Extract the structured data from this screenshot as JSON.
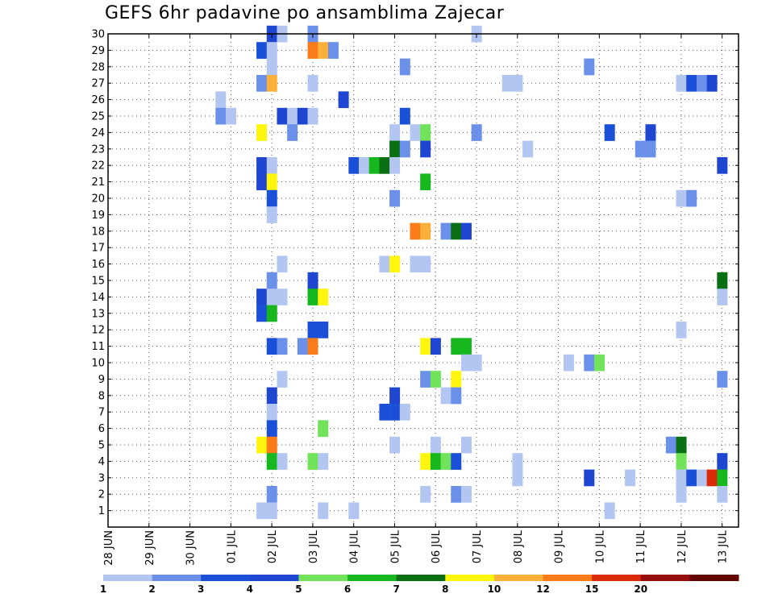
{
  "chart_data": {
    "type": "heatmap",
    "title": "GEFS 6hr padavine po ansamblima Zajecar",
    "x_tick_labels": [
      "28 JUN",
      "29 JUN",
      "30 JUN",
      "01 JUL",
      "02 JUL",
      "03 JUL",
      "04 JUL",
      "05 JUL",
      "06 JUL",
      "07 JUL",
      "08 JUL",
      "09 JUL",
      "10 JUL",
      "11 JUL",
      "12 JUL",
      "13 JUL"
    ],
    "x_range_days": [
      0,
      15.4
    ],
    "y_tick_labels": [
      "1",
      "2",
      "3",
      "4",
      "5",
      "6",
      "7",
      "8",
      "9",
      "10",
      "11",
      "12",
      "13",
      "14",
      "15",
      "16",
      "17",
      "18",
      "19",
      "20",
      "21",
      "22",
      "23",
      "24",
      "25",
      "26",
      "27",
      "28",
      "29",
      "30"
    ],
    "y_range": [
      0,
      30
    ],
    "grid": true,
    "colorbar": {
      "levels": [
        1,
        2,
        3,
        4,
        5,
        6,
        7,
        8,
        10,
        12,
        15,
        20
      ],
      "colors": [
        "#b3c6f2",
        "#6a90ea",
        "#1a50d8",
        "#1e46d0",
        "#70e35a",
        "#16b81e",
        "#0a6e12",
        "#fff50d",
        "#fbb03a",
        "#f97b1a",
        "#db2a08",
        "#970d0d",
        "#640404"
      ]
    },
    "cells": [
      {
        "day": 4.0,
        "member": 30,
        "v": 4
      },
      {
        "day": 4.25,
        "member": 30,
        "v": 1
      },
      {
        "day": 5.0,
        "member": 30,
        "v": 2
      },
      {
        "day": 9.0,
        "member": 30,
        "v": 1
      },
      {
        "day": 3.75,
        "member": 29,
        "v": 3
      },
      {
        "day": 4.0,
        "member": 29,
        "v": 1
      },
      {
        "day": 5.0,
        "member": 29,
        "v": 12
      },
      {
        "day": 5.25,
        "member": 29,
        "v": 10
      },
      {
        "day": 5.5,
        "member": 29,
        "v": 2
      },
      {
        "day": 4.0,
        "member": 28,
        "v": 1
      },
      {
        "day": 7.25,
        "member": 28,
        "v": 2
      },
      {
        "day": 11.75,
        "member": 28,
        "v": 2
      },
      {
        "day": 3.75,
        "member": 27,
        "v": 2
      },
      {
        "day": 4.0,
        "member": 27,
        "v": 10
      },
      {
        "day": 5.0,
        "member": 27,
        "v": 1
      },
      {
        "day": 9.75,
        "member": 27,
        "v": 1
      },
      {
        "day": 10.0,
        "member": 27,
        "v": 1
      },
      {
        "day": 14.0,
        "member": 27,
        "v": 1
      },
      {
        "day": 14.25,
        "member": 27,
        "v": 3
      },
      {
        "day": 14.5,
        "member": 27,
        "v": 2
      },
      {
        "day": 14.75,
        "member": 27,
        "v": 4
      },
      {
        "day": 2.75,
        "member": 26,
        "v": 1
      },
      {
        "day": 5.75,
        "member": 26,
        "v": 4
      },
      {
        "day": 2.75,
        "member": 25,
        "v": 2
      },
      {
        "day": 3.0,
        "member": 25,
        "v": 1
      },
      {
        "day": 4.25,
        "member": 25,
        "v": 4
      },
      {
        "day": 4.5,
        "member": 25,
        "v": 1
      },
      {
        "day": 4.75,
        "member": 25,
        "v": 4
      },
      {
        "day": 5.0,
        "member": 25,
        "v": 1
      },
      {
        "day": 7.25,
        "member": 25,
        "v": 3
      },
      {
        "day": 3.75,
        "member": 24,
        "v": 8
      },
      {
        "day": 4.5,
        "member": 24,
        "v": 2
      },
      {
        "day": 7.0,
        "member": 24,
        "v": 1
      },
      {
        "day": 7.5,
        "member": 24,
        "v": 1
      },
      {
        "day": 7.75,
        "member": 24,
        "v": 5
      },
      {
        "day": 9.0,
        "member": 24,
        "v": 2
      },
      {
        "day": 12.25,
        "member": 24,
        "v": 3
      },
      {
        "day": 13.25,
        "member": 24,
        "v": 4
      },
      {
        "day": 7.0,
        "member": 23,
        "v": 7
      },
      {
        "day": 7.25,
        "member": 23,
        "v": 2
      },
      {
        "day": 7.75,
        "member": 23,
        "v": 4
      },
      {
        "day": 10.25,
        "member": 23,
        "v": 1
      },
      {
        "day": 13.0,
        "member": 23,
        "v": 2
      },
      {
        "day": 13.25,
        "member": 23,
        "v": 2
      },
      {
        "day": 3.75,
        "member": 22,
        "v": 4
      },
      {
        "day": 4.0,
        "member": 22,
        "v": 1
      },
      {
        "day": 6.0,
        "member": 22,
        "v": 3
      },
      {
        "day": 6.25,
        "member": 22,
        "v": 1
      },
      {
        "day": 6.5,
        "member": 22,
        "v": 6
      },
      {
        "day": 6.75,
        "member": 22,
        "v": 7
      },
      {
        "day": 7.0,
        "member": 22,
        "v": 1
      },
      {
        "day": 15.0,
        "member": 22,
        "v": 4
      },
      {
        "day": 3.75,
        "member": 21,
        "v": 4
      },
      {
        "day": 4.0,
        "member": 21,
        "v": 8
      },
      {
        "day": 7.75,
        "member": 21,
        "v": 6
      },
      {
        "day": 4.0,
        "member": 20,
        "v": 3
      },
      {
        "day": 7.0,
        "member": 20,
        "v": 2
      },
      {
        "day": 14.0,
        "member": 20,
        "v": 1
      },
      {
        "day": 14.25,
        "member": 20,
        "v": 2
      },
      {
        "day": 4.0,
        "member": 19,
        "v": 1
      },
      {
        "day": 7.5,
        "member": 18,
        "v": 12
      },
      {
        "day": 7.75,
        "member": 18,
        "v": 10
      },
      {
        "day": 8.25,
        "member": 18,
        "v": 2
      },
      {
        "day": 8.5,
        "member": 18,
        "v": 7
      },
      {
        "day": 8.75,
        "member": 18,
        "v": 4
      },
      {
        "day": 4.25,
        "member": 16,
        "v": 1
      },
      {
        "day": 6.75,
        "member": 16,
        "v": 1
      },
      {
        "day": 7.0,
        "member": 16,
        "v": 8
      },
      {
        "day": 7.5,
        "member": 16,
        "v": 1
      },
      {
        "day": 7.75,
        "member": 16,
        "v": 1
      },
      {
        "day": 4.0,
        "member": 15,
        "v": 2
      },
      {
        "day": 5.0,
        "member": 15,
        "v": 4
      },
      {
        "day": 15.0,
        "member": 15,
        "v": 7
      },
      {
        "day": 3.75,
        "member": 14,
        "v": 4
      },
      {
        "day": 4.0,
        "member": 14,
        "v": 1
      },
      {
        "day": 4.25,
        "member": 14,
        "v": 1
      },
      {
        "day": 5.0,
        "member": 14,
        "v": 6
      },
      {
        "day": 5.25,
        "member": 14,
        "v": 9
      },
      {
        "day": 15.0,
        "member": 14,
        "v": 1
      },
      {
        "day": 3.75,
        "member": 13,
        "v": 3
      },
      {
        "day": 4.0,
        "member": 13,
        "v": 6
      },
      {
        "day": 5.0,
        "member": 12,
        "v": 3
      },
      {
        "day": 5.25,
        "member": 12,
        "v": 3
      },
      {
        "day": 14.0,
        "member": 12,
        "v": 1
      },
      {
        "day": 4.0,
        "member": 11,
        "v": 3
      },
      {
        "day": 4.25,
        "member": 11,
        "v": 2
      },
      {
        "day": 4.75,
        "member": 11,
        "v": 2
      },
      {
        "day": 5.0,
        "member": 11,
        "v": 12
      },
      {
        "day": 7.75,
        "member": 11,
        "v": 8
      },
      {
        "day": 8.0,
        "member": 11,
        "v": 4
      },
      {
        "day": 8.5,
        "member": 11,
        "v": 6
      },
      {
        "day": 8.75,
        "member": 11,
        "v": 6
      },
      {
        "day": 8.75,
        "member": 10,
        "v": 1
      },
      {
        "day": 9.0,
        "member": 10,
        "v": 1
      },
      {
        "day": 11.25,
        "member": 10,
        "v": 1
      },
      {
        "day": 11.75,
        "member": 10,
        "v": 2
      },
      {
        "day": 12.0,
        "member": 10,
        "v": 5
      },
      {
        "day": 4.25,
        "member": 9,
        "v": 1
      },
      {
        "day": 7.75,
        "member": 9,
        "v": 2
      },
      {
        "day": 8.0,
        "member": 9,
        "v": 5
      },
      {
        "day": 8.5,
        "member": 9,
        "v": 8
      },
      {
        "day": 15.0,
        "member": 9,
        "v": 2
      },
      {
        "day": 4.0,
        "member": 8,
        "v": 4
      },
      {
        "day": 7.0,
        "member": 8,
        "v": 4
      },
      {
        "day": 8.25,
        "member": 8,
        "v": 1
      },
      {
        "day": 8.5,
        "member": 8,
        "v": 2
      },
      {
        "day": 4.0,
        "member": 7,
        "v": 1
      },
      {
        "day": 6.75,
        "member": 7,
        "v": 3
      },
      {
        "day": 7.0,
        "member": 7,
        "v": 3
      },
      {
        "day": 7.25,
        "member": 7,
        "v": 1
      },
      {
        "day": 4.0,
        "member": 6,
        "v": 3
      },
      {
        "day": 5.25,
        "member": 6,
        "v": 5
      },
      {
        "day": 3.75,
        "member": 5,
        "v": 8
      },
      {
        "day": 4.0,
        "member": 5,
        "v": 12
      },
      {
        "day": 7.0,
        "member": 5,
        "v": 1
      },
      {
        "day": 8.0,
        "member": 5,
        "v": 1
      },
      {
        "day": 8.75,
        "member": 5,
        "v": 1
      },
      {
        "day": 13.75,
        "member": 5,
        "v": 2
      },
      {
        "day": 14.0,
        "member": 5,
        "v": 7
      },
      {
        "day": 4.0,
        "member": 4,
        "v": 6
      },
      {
        "day": 4.25,
        "member": 4,
        "v": 1
      },
      {
        "day": 5.0,
        "member": 4,
        "v": 5
      },
      {
        "day": 5.25,
        "member": 4,
        "v": 1
      },
      {
        "day": 7.75,
        "member": 4,
        "v": 8
      },
      {
        "day": 8.0,
        "member": 4,
        "v": 6
      },
      {
        "day": 8.25,
        "member": 4,
        "v": 5
      },
      {
        "day": 8.5,
        "member": 4,
        "v": 3
      },
      {
        "day": 10.0,
        "member": 4,
        "v": 1
      },
      {
        "day": 14.0,
        "member": 4,
        "v": 5
      },
      {
        "day": 15.0,
        "member": 4,
        "v": 4
      },
      {
        "day": 10.0,
        "member": 3,
        "v": 1
      },
      {
        "day": 11.75,
        "member": 3,
        "v": 4
      },
      {
        "day": 12.75,
        "member": 3,
        "v": 1
      },
      {
        "day": 14.0,
        "member": 3,
        "v": 1
      },
      {
        "day": 14.25,
        "member": 3,
        "v": 3
      },
      {
        "day": 14.5,
        "member": 3,
        "v": 1
      },
      {
        "day": 14.75,
        "member": 3,
        "v": 15
      },
      {
        "day": 15.0,
        "member": 3,
        "v": 6
      },
      {
        "day": 4.0,
        "member": 2,
        "v": 2
      },
      {
        "day": 7.75,
        "member": 2,
        "v": 1
      },
      {
        "day": 8.5,
        "member": 2,
        "v": 2
      },
      {
        "day": 8.75,
        "member": 2,
        "v": 1
      },
      {
        "day": 14.0,
        "member": 2,
        "v": 1
      },
      {
        "day": 15.0,
        "member": 2,
        "v": 1
      },
      {
        "day": 3.75,
        "member": 1,
        "v": 1
      },
      {
        "day": 4.0,
        "member": 1,
        "v": 1
      },
      {
        "day": 5.25,
        "member": 1,
        "v": 1
      },
      {
        "day": 6.0,
        "member": 1,
        "v": 1
      },
      {
        "day": 12.25,
        "member": 1,
        "v": 1
      }
    ]
  }
}
